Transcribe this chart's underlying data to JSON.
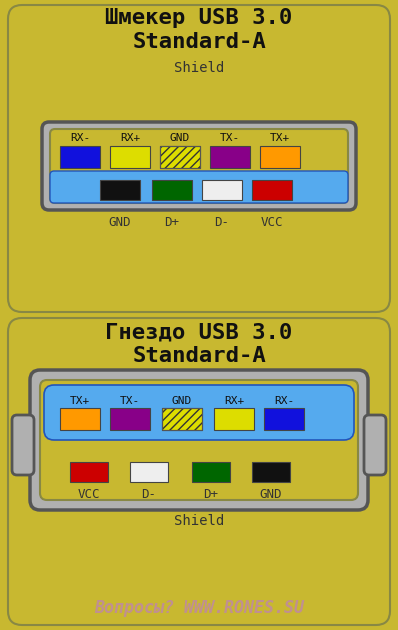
{
  "bg_color": "#c8b830",
  "title1_line1": "Шмекер USB 3.0",
  "title1_line2": "Standard-A",
  "title2_line1": "Гнездо USB 3.0",
  "title2_line2": "Standard-A",
  "footer": "Вопросы? WWW.RONES.SU",
  "plug_top_pins": [
    {
      "label": "RX-",
      "color": "#1111dd"
    },
    {
      "label": "RX+",
      "color": "#dddd00"
    },
    {
      "label": "GND",
      "color": "hatched"
    },
    {
      "label": "TX-",
      "color": "#880088"
    },
    {
      "label": "TX+",
      "color": "#ff9900"
    }
  ],
  "plug_bottom_pins": [
    {
      "label": "GND",
      "color": "#111111"
    },
    {
      "label": "D+",
      "color": "#006600"
    },
    {
      "label": "D-",
      "color": "#eeeeee"
    },
    {
      "label": "VCC",
      "color": "#cc0000"
    }
  ],
  "plug_bottom_labels": [
    "GND",
    "D+",
    "D-",
    "VCC"
  ],
  "socket_top_pins": [
    {
      "label": "TX+",
      "color": "#ff9900"
    },
    {
      "label": "TX-",
      "color": "#880088"
    },
    {
      "label": "GND",
      "color": "hatched"
    },
    {
      "label": "RX+",
      "color": "#dddd00"
    },
    {
      "label": "RX-",
      "color": "#1111dd"
    }
  ],
  "socket_bottom_pins": [
    {
      "label": "VCC",
      "color": "#cc0000"
    },
    {
      "label": "D-",
      "color": "#eeeeee"
    },
    {
      "label": "D+",
      "color": "#006600"
    },
    {
      "label": "GND",
      "color": "#111111"
    }
  ],
  "socket_bottom_labels": [
    "VCC",
    "D-",
    "D+",
    "GND"
  ],
  "gray_connector": "#b0b0b0",
  "gray_edge": "#555555",
  "gold": "#c8b830",
  "gold_edge": "#888844",
  "blue_usb": "#55aaee",
  "blue_edge": "#2255bb"
}
